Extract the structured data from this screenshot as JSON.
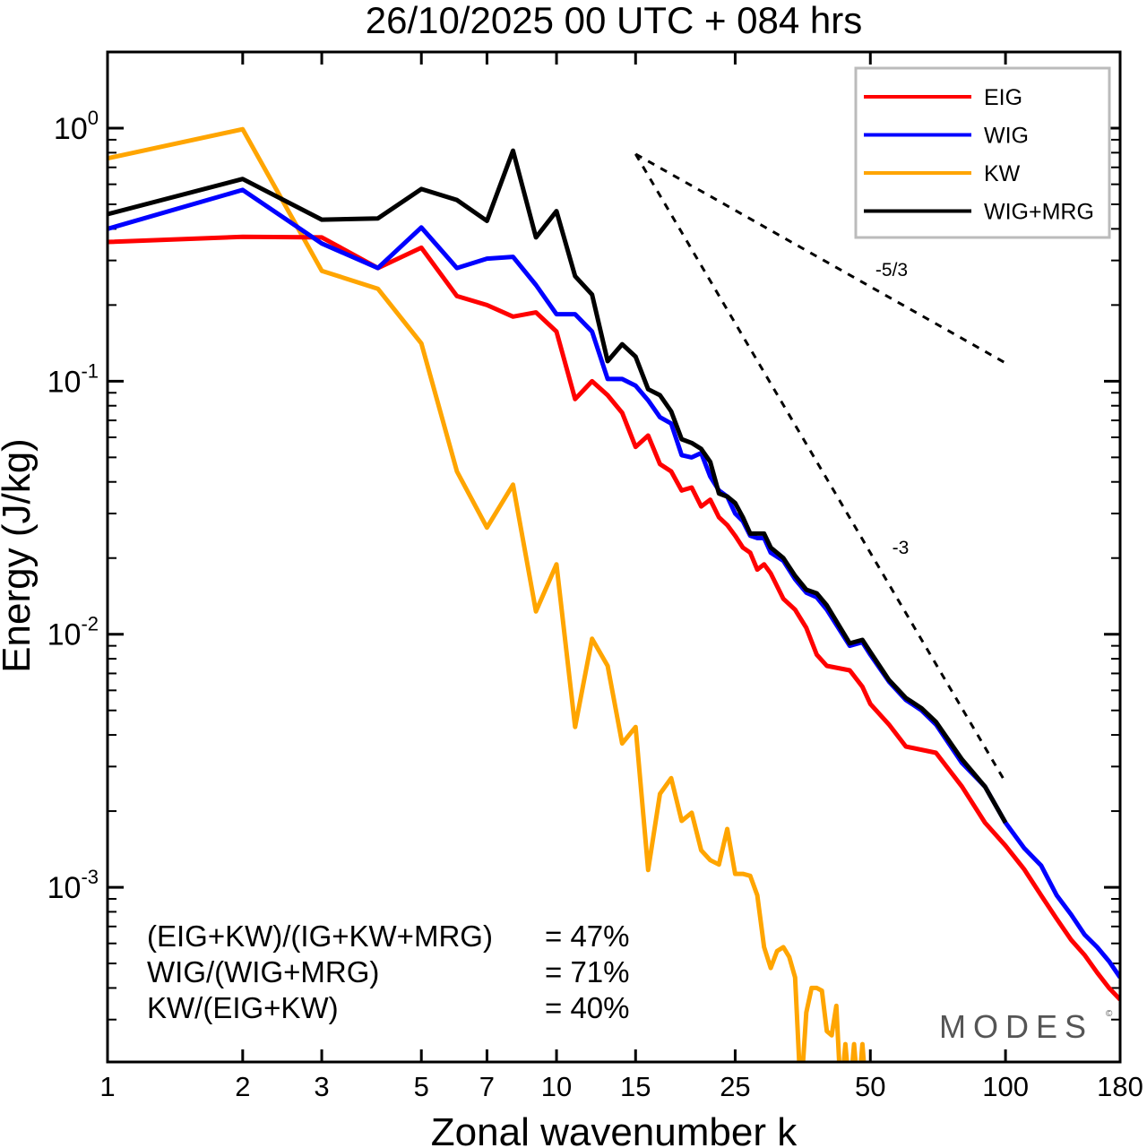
{
  "chart_data": {
    "type": "line",
    "title": "26/10/2025  00 UTC  + 084 hrs",
    "xlabel": "Zonal wavenumber k",
    "ylabel": "Energy (J/kg)",
    "xscale": "log",
    "yscale": "log",
    "xlim": [
      1,
      180
    ],
    "ylim": [
      0.000204,
      2.0
    ],
    "grid": false,
    "legend_position": "top-right",
    "x_ticks": [
      1,
      2,
      3,
      5,
      7,
      10,
      15,
      25,
      50,
      100,
      180
    ],
    "x_tick_labels": [
      "1",
      "2",
      "3",
      "5",
      "7",
      "10",
      "15",
      "25",
      "50",
      "100",
      "180"
    ],
    "y_ticks": [
      1,
      0.1,
      0.01,
      0.001
    ],
    "y_tick_labels": [
      {
        "base": "10",
        "exp": "0"
      },
      {
        "base": "10",
        "exp": "-1"
      },
      {
        "base": "10",
        "exp": "-2"
      },
      {
        "base": "10",
        "exp": "-3"
      }
    ],
    "series": [
      {
        "name": "EIG",
        "color": "#ff0000",
        "x": [
          1,
          2,
          3,
          4,
          5,
          6,
          7,
          8,
          9,
          10,
          11,
          12,
          13,
          14,
          15,
          16,
          17,
          18,
          19,
          20,
          21,
          22,
          23,
          24,
          25,
          26,
          27,
          28,
          29,
          30,
          32,
          34,
          36,
          38,
          40,
          45,
          48,
          50,
          55,
          60,
          70,
          80,
          90,
          100,
          110,
          120,
          130,
          140,
          150,
          160,
          170,
          180
        ],
        "y": [
          0.355,
          0.372,
          0.37,
          0.28,
          0.337,
          0.217,
          0.2,
          0.18,
          0.187,
          0.157,
          0.085,
          0.1,
          0.088,
          0.075,
          0.055,
          0.061,
          0.047,
          0.044,
          0.037,
          0.038,
          0.032,
          0.034,
          0.029,
          0.027,
          0.0245,
          0.022,
          0.021,
          0.018,
          0.0189,
          0.0174,
          0.0138,
          0.0125,
          0.0106,
          0.0083,
          0.0075,
          0.0072,
          0.0062,
          0.0053,
          0.0044,
          0.0036,
          0.0034,
          0.0025,
          0.0018,
          0.00146,
          0.00118,
          0.00093,
          0.00075,
          0.00062,
          0.00054,
          0.00046,
          0.0004,
          0.00036
        ]
      },
      {
        "name": "WIG",
        "color": "#0000ff",
        "x": [
          1,
          2,
          3,
          4,
          5,
          6,
          7,
          8,
          9,
          10,
          11,
          12,
          13,
          14,
          15,
          16,
          17,
          18,
          19,
          20,
          21,
          22,
          23,
          24,
          25,
          26,
          27,
          28,
          29,
          30,
          32,
          34,
          36,
          38,
          40,
          45,
          48,
          50,
          55,
          60,
          65,
          70,
          80,
          90,
          100,
          110,
          120,
          130,
          140,
          150,
          160,
          170,
          180
        ],
        "y": [
          0.4,
          0.57,
          0.35,
          0.28,
          0.405,
          0.28,
          0.305,
          0.31,
          0.24,
          0.184,
          0.184,
          0.157,
          0.102,
          0.102,
          0.096,
          0.084,
          0.072,
          0.068,
          0.051,
          0.05,
          0.052,
          0.042,
          0.037,
          0.035,
          0.03,
          0.028,
          0.0245,
          0.024,
          0.024,
          0.021,
          0.0195,
          0.0165,
          0.0146,
          0.014,
          0.0125,
          0.009,
          0.0093,
          0.0083,
          0.0065,
          0.0055,
          0.005,
          0.0044,
          0.0031,
          0.0025,
          0.0018,
          0.00143,
          0.00122,
          0.00093,
          0.00078,
          0.00065,
          0.00058,
          0.00051,
          0.00044
        ]
      },
      {
        "name": "KW",
        "color": "#ffa500",
        "x": [
          1,
          2,
          3,
          4,
          5,
          6,
          7,
          8,
          9,
          10,
          11,
          12,
          13,
          14,
          15,
          16,
          17,
          18,
          19,
          20,
          21,
          22,
          23,
          24,
          25,
          26,
          27,
          28,
          29,
          30,
          31,
          32,
          33,
          34,
          35,
          36,
          37,
          38,
          39,
          40,
          41,
          42,
          43,
          44,
          45,
          46,
          47,
          48,
          49
        ],
        "y": [
          0.76,
          0.99,
          0.273,
          0.232,
          0.141,
          0.044,
          0.0264,
          0.039,
          0.0123,
          0.0189,
          0.0043,
          0.0096,
          0.0075,
          0.0037,
          0.0043,
          0.00117,
          0.00234,
          0.0027,
          0.00183,
          0.00197,
          0.0014,
          0.00128,
          0.00123,
          0.0017,
          0.00113,
          0.00113,
          0.00111,
          0.00093,
          0.00058,
          0.00048,
          0.00056,
          0.00058,
          0.00053,
          0.00044,
          0.00015,
          0.00032,
          0.0004,
          0.0004,
          0.00039,
          0.00027,
          0.00026,
          0.00034,
          0.00015,
          0.00024,
          0.00015,
          0.00024,
          0.00015,
          0.00024,
          0.00015
        ]
      },
      {
        "name": "WIG+MRG",
        "color": "#000000",
        "x": [
          1,
          2,
          3,
          4,
          5,
          6,
          7,
          8,
          9,
          10,
          11,
          12,
          13,
          14,
          15,
          16,
          17,
          18,
          19,
          20,
          21,
          22,
          23,
          24,
          25,
          26,
          27,
          28,
          29,
          30,
          32,
          34,
          36,
          38,
          40,
          45,
          48,
          50,
          55,
          60,
          65,
          70,
          80,
          90,
          100
        ],
        "y": [
          0.457,
          0.63,
          0.435,
          0.44,
          0.575,
          0.52,
          0.43,
          0.815,
          0.37,
          0.47,
          0.26,
          0.22,
          0.12,
          0.14,
          0.125,
          0.093,
          0.088,
          0.076,
          0.059,
          0.057,
          0.054,
          0.048,
          0.036,
          0.035,
          0.033,
          0.029,
          0.025,
          0.025,
          0.025,
          0.022,
          0.02,
          0.017,
          0.015,
          0.0145,
          0.013,
          0.0092,
          0.0095,
          0.0085,
          0.0066,
          0.0056,
          0.0051,
          0.0045,
          0.0032,
          0.0025,
          0.0018
        ]
      }
    ],
    "reference_lines": [
      {
        "label": "-5/3",
        "x": [
          15,
          100
        ],
        "y": [
          0.79,
          0.118
        ]
      },
      {
        "label": "-3",
        "x": [
          15,
          100
        ],
        "y": [
          0.79,
          0.0026
        ]
      }
    ],
    "annotations": [
      {
        "text": "(EIG+KW)/(IG+KW+MRG)",
        "value": "= 47%"
      },
      {
        "text": "WIG/(WIG+MRG)",
        "value": "= 71%"
      },
      {
        "text": "KW/(EIG+KW)",
        "value": "= 40%"
      }
    ],
    "logo": "MODES",
    "logo_mark": "©"
  }
}
